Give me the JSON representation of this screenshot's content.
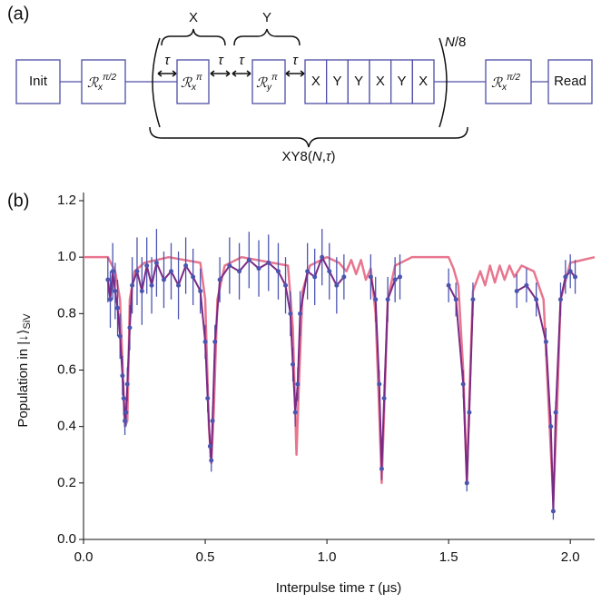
{
  "panel_a": {
    "label": "(a)",
    "init": "Init",
    "read": "Read",
    "gates": [
      {
        "base": "ℛ",
        "sub": "x",
        "sup": "π/2"
      },
      {
        "base": "ℛ",
        "sub": "x",
        "sup": "π"
      },
      {
        "base": "ℛ",
        "sub": "y",
        "sup": "π"
      },
      {
        "base": "ℛ",
        "sub": "x",
        "sup": "π/2"
      }
    ],
    "sequence": [
      "X",
      "Y",
      "Y",
      "X",
      "Y",
      "X"
    ],
    "tau": "τ",
    "brace_labels": [
      "X",
      "Y"
    ],
    "repeat": [
      "N",
      "/8"
    ],
    "block": [
      "XY8(",
      "N",
      ",",
      "τ",
      ")"
    ]
  },
  "chart_data": {
    "type": "scatter",
    "panel_label": "(b)",
    "xlabel": [
      "Interpulse time ",
      "τ",
      " (μs)"
    ],
    "ylabel": [
      "Population in |↓⟩",
      "SiV"
    ],
    "xlim": [
      0,
      2.1
    ],
    "ylim": [
      0,
      1.2
    ],
    "xticks": [
      {
        "value": 0,
        "label": "0.0"
      },
      0.5,
      {
        "value": 1,
        "label": "1.0"
      },
      1.5,
      {
        "value": 2,
        "label": "2.0"
      }
    ],
    "yticks": [
      {
        "value": 0,
        "label": "0.0"
      },
      0.2,
      0.4,
      0.6,
      0.8,
      {
        "value": 1,
        "label": "1.0"
      },
      1.2
    ],
    "series": [
      {
        "kind": "line",
        "color": "#e8768f",
        "x": [
          0,
          0.1,
          0.13,
          0.15,
          0.17,
          0.18,
          0.19,
          0.21,
          0.25,
          0.35,
          0.48,
          0.5,
          0.515,
          0.525,
          0.535,
          0.55,
          0.58,
          0.65,
          0.84,
          0.86,
          0.875,
          0.885,
          0.9,
          0.93,
          1.0,
          1.05,
          1.08,
          1.1,
          1.12,
          1.14,
          1.16,
          1.18,
          1.2,
          1.215,
          1.225,
          1.235,
          1.25,
          1.28,
          1.35,
          1.5,
          1.52,
          1.54,
          1.56,
          1.575,
          1.585,
          1.6,
          1.63,
          1.65,
          1.67,
          1.69,
          1.71,
          1.73,
          1.75,
          1.77,
          1.8,
          1.85,
          1.89,
          1.915,
          1.93,
          1.945,
          1.96,
          2.0,
          2.1
        ],
        "values": [
          1.0,
          1.0,
          0.95,
          0.85,
          0.4,
          0.42,
          0.85,
          0.95,
          0.98,
          1.0,
          0.98,
          0.85,
          0.4,
          0.27,
          0.45,
          0.85,
          0.97,
          1.0,
          0.97,
          0.75,
          0.3,
          0.55,
          0.88,
          0.97,
          1.0,
          0.98,
          0.95,
          0.99,
          0.94,
          0.99,
          0.92,
          0.96,
          0.8,
          0.45,
          0.2,
          0.45,
          0.85,
          0.97,
          1.0,
          1.0,
          0.96,
          0.9,
          0.6,
          0.2,
          0.5,
          0.88,
          0.95,
          0.9,
          0.97,
          0.91,
          0.97,
          0.92,
          0.97,
          0.93,
          0.97,
          0.95,
          0.85,
          0.4,
          0.14,
          0.45,
          0.85,
          0.98,
          1.0
        ]
      },
      {
        "kind": "errorbar",
        "color": "#4b55b0",
        "line_color": "#7a2a84",
        "x": [
          0.1,
          0.11,
          0.12,
          0.13,
          0.14,
          0.15,
          0.16,
          0.165,
          0.17,
          0.175,
          0.18,
          0.19,
          0.2,
          0.22,
          0.24,
          0.26,
          0.28,
          0.3,
          0.33,
          0.36,
          0.39,
          0.42,
          0.45,
          0.48,
          0.5,
          0.51,
          0.52,
          0.525,
          0.53,
          0.54,
          0.56,
          0.6,
          0.64,
          0.68,
          0.72,
          0.76,
          0.8,
          0.83,
          0.85,
          0.86,
          0.87,
          0.88,
          0.89,
          0.92,
          0.95,
          0.98,
          1.01,
          1.04,
          1.07,
          1.12,
          1.18,
          1.2,
          1.215,
          1.225,
          1.235,
          1.25,
          1.28,
          1.3,
          1.4,
          1.5,
          1.53,
          1.56,
          1.575,
          1.585,
          1.6,
          1.7,
          1.78,
          1.82,
          1.86,
          1.9,
          1.92,
          1.93,
          1.94,
          1.96,
          1.98,
          2.0,
          2.02
        ],
        "values": [
          0.92,
          0.85,
          0.95,
          0.88,
          0.82,
          0.72,
          0.58,
          0.5,
          0.42,
          0.45,
          0.55,
          0.75,
          0.9,
          0.95,
          0.88,
          0.97,
          0.9,
          0.98,
          0.92,
          0.95,
          0.9,
          0.97,
          0.93,
          0.88,
          0.7,
          0.5,
          0.33,
          0.28,
          0.42,
          0.7,
          0.92,
          0.97,
          0.95,
          0.99,
          0.96,
          0.98,
          0.95,
          0.9,
          0.8,
          0.62,
          0.45,
          0.55,
          0.8,
          0.95,
          0.93,
          1.0,
          0.95,
          0.9,
          0.93,
          null,
          0.93,
          0.85,
          0.55,
          0.25,
          0.5,
          0.85,
          0.92,
          0.93,
          null,
          0.9,
          0.85,
          0.55,
          0.2,
          0.45,
          0.85,
          null,
          0.88,
          0.9,
          0.85,
          0.7,
          0.4,
          0.1,
          0.45,
          0.85,
          0.93,
          0.95,
          0.93
        ],
        "errors": [
          0.08,
          0.1,
          0.1,
          0.1,
          0.1,
          0.08,
          0.07,
          0.06,
          0.05,
          0.05,
          0.06,
          0.08,
          0.1,
          0.12,
          0.12,
          0.1,
          0.1,
          0.12,
          0.1,
          0.1,
          0.12,
          0.1,
          0.1,
          0.08,
          0.06,
          0.05,
          0.04,
          0.04,
          0.05,
          0.06,
          0.08,
          0.1,
          0.1,
          0.1,
          0.1,
          0.1,
          0.1,
          0.1,
          0.08,
          0.06,
          0.05,
          0.06,
          0.08,
          0.1,
          0.1,
          0.1,
          0.1,
          0.1,
          0.08,
          null,
          0.08,
          0.08,
          0.05,
          0.04,
          0.05,
          0.08,
          0.08,
          0.08,
          null,
          0.06,
          0.06,
          0.05,
          0.03,
          0.05,
          0.06,
          null,
          0.06,
          0.06,
          0.06,
          0.05,
          0.04,
          0.03,
          0.04,
          0.06,
          0.06,
          0.06,
          0.06
        ]
      }
    ]
  }
}
